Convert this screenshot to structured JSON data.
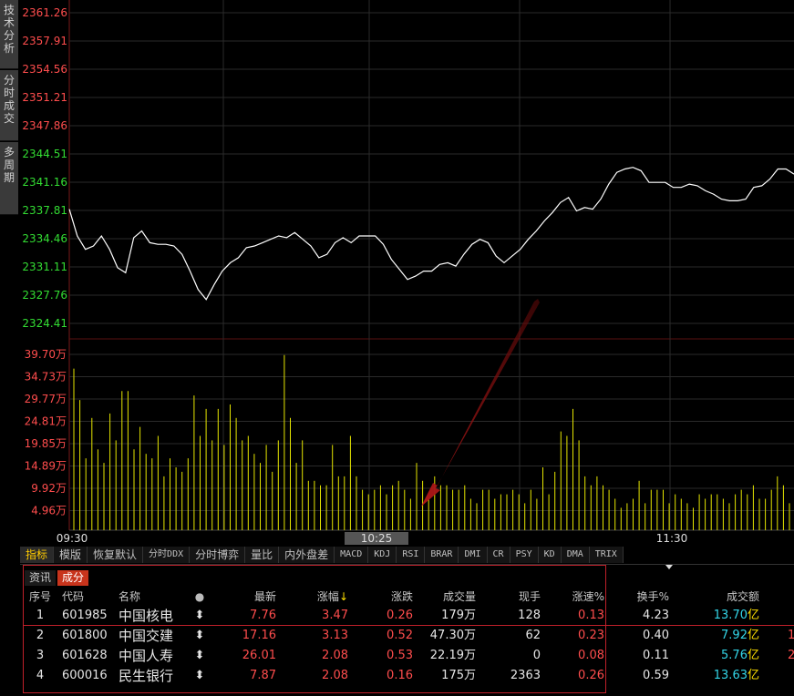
{
  "side_tabs": [
    "技术分析",
    "分时成交",
    "多周期"
  ],
  "price_axis": {
    "upper_labels": [
      "2361.26",
      "2357.91",
      "2354.56",
      "2351.21",
      "2347.86"
    ],
    "lower_labels": [
      "2344.51",
      "2341.16",
      "2337.81",
      "2334.46",
      "2331.11",
      "2327.76",
      "2324.41"
    ],
    "upper_color": "#ff4d4d",
    "lower_color": "#33dd33"
  },
  "volume_axis": {
    "labels": [
      "39.70万",
      "34.73万",
      "29.77万",
      "24.81万",
      "19.85万",
      "14.89万",
      "9.92万",
      "4.96万"
    ],
    "color": "#ff4d4d"
  },
  "time_axis": {
    "labels": [
      "09:30",
      "10:25",
      "11:30"
    ],
    "highlight": "10:25"
  },
  "chart_data": {
    "type": "line",
    "price_line": {
      "ylim": [
        2322.5,
        2363.0
      ],
      "points": [
        [
          0,
          2338.0
        ],
        [
          2,
          2334.8
        ],
        [
          4,
          2333.2
        ],
        [
          6,
          2333.6
        ],
        [
          8,
          2334.8
        ],
        [
          10,
          2333.2
        ],
        [
          12,
          2331.0
        ],
        [
          14,
          2330.4
        ],
        [
          16,
          2334.6
        ],
        [
          18,
          2335.4
        ],
        [
          20,
          2334.0
        ],
        [
          22,
          2333.8
        ],
        [
          24,
          2333.8
        ],
        [
          26,
          2333.6
        ],
        [
          28,
          2332.6
        ],
        [
          30,
          2330.6
        ],
        [
          32,
          2328.4
        ],
        [
          34,
          2327.2
        ],
        [
          36,
          2329.0
        ],
        [
          38,
          2330.6
        ],
        [
          40,
          2331.6
        ],
        [
          42,
          2332.2
        ],
        [
          44,
          2333.4
        ],
        [
          46,
          2333.6
        ],
        [
          48,
          2334.0
        ],
        [
          50,
          2334.4
        ],
        [
          52,
          2334.8
        ],
        [
          54,
          2334.6
        ],
        [
          56,
          2335.2
        ],
        [
          58,
          2334.4
        ],
        [
          60,
          2333.6
        ],
        [
          62,
          2332.2
        ],
        [
          64,
          2332.6
        ],
        [
          66,
          2334.0
        ],
        [
          68,
          2334.6
        ],
        [
          70,
          2334.0
        ],
        [
          72,
          2334.8
        ],
        [
          74,
          2334.8
        ],
        [
          76,
          2334.8
        ],
        [
          78,
          2333.8
        ],
        [
          80,
          2332.0
        ],
        [
          82,
          2330.8
        ],
        [
          84,
          2329.6
        ],
        [
          86,
          2330.0
        ],
        [
          88,
          2330.6
        ],
        [
          90,
          2330.6
        ],
        [
          92,
          2331.4
        ],
        [
          94,
          2331.6
        ],
        [
          96,
          2331.2
        ],
        [
          98,
          2332.6
        ],
        [
          100,
          2333.8
        ],
        [
          102,
          2334.4
        ],
        [
          104,
          2334.0
        ],
        [
          106,
          2332.4
        ],
        [
          108,
          2331.6
        ],
        [
          110,
          2332.4
        ],
        [
          112,
          2333.2
        ],
        [
          114,
          2334.4
        ],
        [
          116,
          2335.4
        ],
        [
          118,
          2336.6
        ],
        [
          120,
          2337.6
        ],
        [
          122,
          2338.8
        ],
        [
          124,
          2339.4
        ],
        [
          126,
          2337.8
        ],
        [
          128,
          2338.2
        ],
        [
          130,
          2338.0
        ],
        [
          132,
          2339.2
        ],
        [
          134,
          2341.0
        ],
        [
          136,
          2342.4
        ],
        [
          138,
          2342.8
        ],
        [
          140,
          2343.0
        ],
        [
          142,
          2342.6
        ],
        [
          144,
          2341.2
        ],
        [
          146,
          2341.2
        ],
        [
          148,
          2341.2
        ],
        [
          150,
          2340.6
        ],
        [
          152,
          2340.6
        ],
        [
          154,
          2341.0
        ],
        [
          156,
          2340.8
        ],
        [
          158,
          2340.2
        ],
        [
          160,
          2339.8
        ],
        [
          162,
          2339.2
        ],
        [
          164,
          2339.0
        ],
        [
          166,
          2339.0
        ],
        [
          168,
          2339.2
        ],
        [
          170,
          2340.6
        ],
        [
          172,
          2340.8
        ],
        [
          174,
          2341.6
        ],
        [
          176,
          2342.8
        ],
        [
          178,
          2342.8
        ],
        [
          180,
          2342.2
        ]
      ]
    },
    "volume_bars": {
      "ylim": [
        0,
        42.0
      ],
      "unit": "万",
      "values": [
        36,
        29,
        16,
        25,
        18,
        15,
        26,
        20,
        31,
        31,
        18,
        23,
        17,
        16,
        21,
        12,
        16,
        14,
        13,
        16,
        30,
        21,
        27,
        20,
        27,
        19,
        28,
        25,
        20,
        21,
        17,
        15,
        19,
        13,
        20,
        39,
        25,
        15,
        20,
        11,
        11,
        10,
        10,
        19,
        12,
        12,
        21,
        12,
        9,
        8,
        9,
        10,
        8,
        10,
        11,
        9,
        7,
        15,
        11,
        7,
        12,
        10,
        10,
        9,
        9,
        10,
        7,
        6,
        9,
        9,
        7,
        8,
        8,
        9,
        8,
        6,
        9,
        7,
        14,
        8,
        13,
        22,
        21,
        27,
        20,
        12,
        10,
        12,
        10,
        9,
        7,
        5,
        6,
        7,
        11,
        6,
        9,
        9,
        9,
        6,
        8,
        7,
        6,
        5,
        8,
        7,
        8,
        8,
        7,
        6,
        8,
        9,
        8,
        10,
        7,
        7,
        9,
        12,
        10,
        6
      ]
    }
  },
  "indicator_tabs": [
    {
      "label": "指标",
      "active": true
    },
    {
      "label": "模版"
    },
    {
      "label": "恢复默认"
    },
    {
      "label": "分时DDX",
      "mono": true
    },
    {
      "label": "分时博弈"
    },
    {
      "label": "量比"
    },
    {
      "label": "内外盘差"
    },
    {
      "label": "MACD",
      "mono": true
    },
    {
      "label": "KDJ",
      "mono": true
    },
    {
      "label": "RSI",
      "mono": true
    },
    {
      "label": "BRAR",
      "mono": true
    },
    {
      "label": "DMI",
      "mono": true
    },
    {
      "label": "CR",
      "mono": true
    },
    {
      "label": "PSY",
      "mono": true
    },
    {
      "label": "KD",
      "mono": true
    },
    {
      "label": "DMA",
      "mono": true
    },
    {
      "label": "TRIX",
      "mono": true
    }
  ],
  "sub_tabs": [
    {
      "label": "资讯"
    },
    {
      "label": "成分",
      "active": true
    }
  ],
  "table": {
    "headers": [
      "序号",
      "代码",
      "名称",
      "●",
      "最新",
      "涨幅↓",
      "涨跌",
      "成交量",
      "现手",
      "涨速%",
      "换手%",
      "成交额"
    ],
    "rows": [
      [
        "1",
        "601985",
        "中国核电",
        "⬍",
        "7.76",
        "3.47",
        "0.26",
        "179万",
        "128",
        "0.13",
        "4.23",
        "13.70亿"
      ],
      [
        "2",
        "601800",
        "中国交建",
        "⬍",
        "17.16",
        "3.13",
        "0.52",
        "47.30万",
        "62",
        "0.23",
        "0.40",
        "7.92亿"
      ],
      [
        "3",
        "601628",
        "中国人寿",
        "⬍",
        "26.01",
        "2.08",
        "0.53",
        "22.19万",
        "0",
        "0.08",
        "0.11",
        "5.76亿"
      ],
      [
        "4",
        "600016",
        "民生银行",
        "⬍",
        "7.87",
        "2.08",
        "0.16",
        "175万",
        "2363",
        "0.26",
        "0.59",
        "13.63亿"
      ]
    ],
    "overflow": [
      "1",
      "2"
    ]
  }
}
